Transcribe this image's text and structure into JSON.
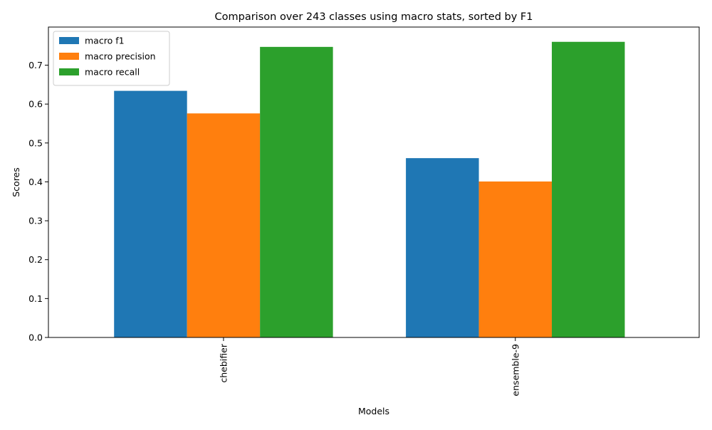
{
  "chart_data": {
    "type": "bar",
    "title": "Comparison over 243 classes using macro stats, sorted by F1",
    "xlabel": "Models",
    "ylabel": "Scores",
    "categories": [
      "chebifier",
      "ensemble-9"
    ],
    "series": [
      {
        "name": "macro f1",
        "color": "#1f77b4",
        "values": [
          0.634,
          0.461
        ]
      },
      {
        "name": "macro precision",
        "color": "#ff7f0e",
        "values": [
          0.576,
          0.401
        ]
      },
      {
        "name": "macro recall",
        "color": "#2ca02c",
        "values": [
          0.747,
          0.76
        ]
      }
    ],
    "ylim": [
      0,
      0.798
    ],
    "yticks": [
      "0.0",
      "0.1",
      "0.2",
      "0.3",
      "0.4",
      "0.5",
      "0.6",
      "0.7"
    ],
    "grid": false,
    "legend_position": "top-left"
  }
}
